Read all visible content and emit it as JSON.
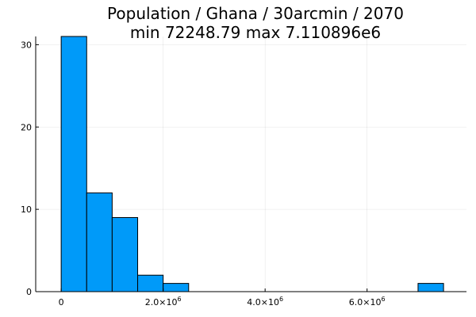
{
  "chart_data": {
    "type": "bar",
    "title": "Population / Ghana / 30arcmin / 2070",
    "subtitle": "min 72248.79  max 7.110896e6",
    "xlabel": "",
    "ylabel": "",
    "bin_width": 500000,
    "bins": [
      {
        "x0": 0,
        "x1": 500000,
        "count": 31
      },
      {
        "x0": 500000,
        "x1": 1000000,
        "count": 12
      },
      {
        "x0": 1000000,
        "x1": 1500000,
        "count": 9
      },
      {
        "x0": 1500000,
        "x1": 2000000,
        "count": 2
      },
      {
        "x0": 2000000,
        "x1": 2500000,
        "count": 1
      },
      {
        "x0": 7000000,
        "x1": 7500000,
        "count": 1
      }
    ],
    "xlim": [
      -500000,
      7950000
    ],
    "ylim": [
      0,
      31
    ],
    "x_ticks": [
      {
        "value": 0,
        "mantissa": "0",
        "exponent": ""
      },
      {
        "value": 2000000,
        "mantissa": "2.0×10",
        "exponent": "6"
      },
      {
        "value": 4000000,
        "mantissa": "4.0×10",
        "exponent": "6"
      },
      {
        "value": 6000000,
        "mantissa": "6.0×10",
        "exponent": "6"
      }
    ],
    "y_ticks": [
      0,
      10,
      20,
      30
    ],
    "grid": true,
    "legend": "none",
    "bar_color": "#009af9",
    "edge_color": "#000000"
  }
}
